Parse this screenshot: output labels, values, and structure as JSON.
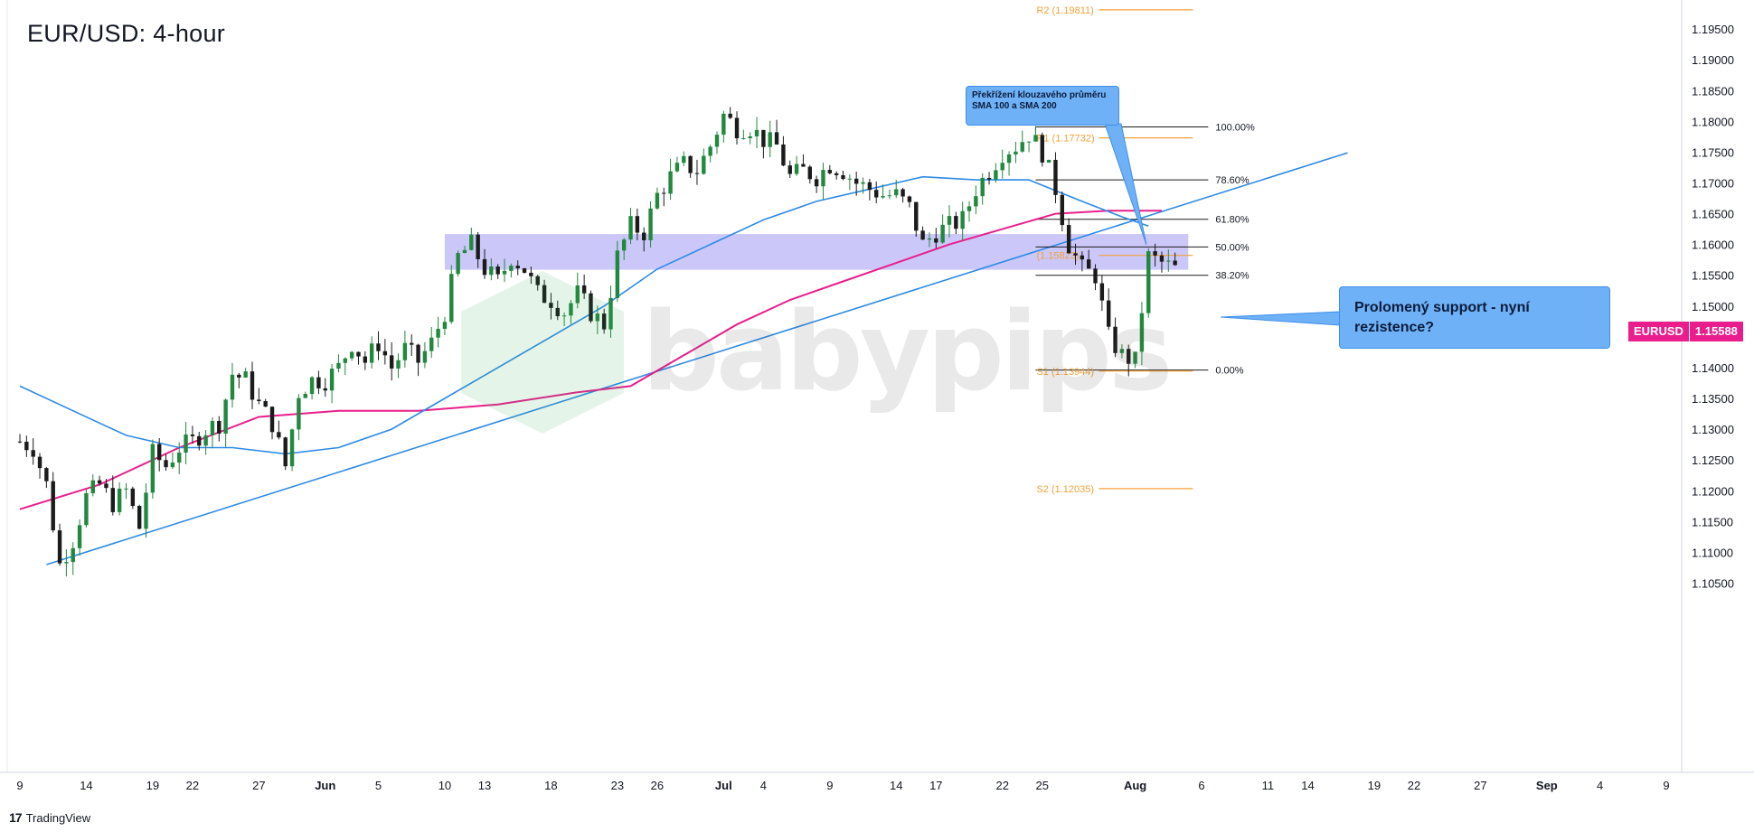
{
  "title": "EUR/USD: 4-hour",
  "brand": {
    "logo": "17",
    "name": "TradingView"
  },
  "watermark": "babypips",
  "price_tag": {
    "symbol": "EURUSD",
    "value": "1.15588"
  },
  "callouts": {
    "sma_cross": "Překřížení klouzavého průměru SMA 100 a SMA 200",
    "broken_support": "Prolomený support - nyní rezistence?"
  },
  "colors": {
    "bull": "#22883f",
    "bear": "#1b1b1b",
    "sma100": "#2d8ae6",
    "sma200": "#e91e8c",
    "trend": "#2d8ae6",
    "zone": "#b9b6f7",
    "pivot": "#f2a13a",
    "fib": "#1b1b1b",
    "callout": "#6fb1f7"
  },
  "chart_data": {
    "type": "candlestick",
    "y_axis": {
      "min": 1.1,
      "max": 1.198,
      "ticks": [
        1.195,
        1.19,
        1.185,
        1.18,
        1.175,
        1.17,
        1.165,
        1.16,
        1.155,
        1.15,
        1.145,
        1.14,
        1.135,
        1.13,
        1.125,
        1.12,
        1.115,
        1.11,
        1.105
      ],
      "tick_labels": [
        "1.19500",
        "1.19000",
        "1.18500",
        "1.18000",
        "1.17500",
        "1.17000",
        "1.16500",
        "1.16000",
        "1.15500",
        "1.15000",
        "1.14500",
        "1.14000",
        "1.13500",
        "1.13000",
        "1.12500",
        "1.12000",
        "1.11500",
        "1.11000",
        "1.10500"
      ]
    },
    "x_axis": {
      "labels": [
        {
          "t": "9",
          "d": 0
        },
        {
          "t": "14",
          "d": 5
        },
        {
          "t": "19",
          "d": 10
        },
        {
          "t": "22",
          "d": 13
        },
        {
          "t": "27",
          "d": 18
        },
        {
          "t": "Jun",
          "d": 23
        },
        {
          "t": "5",
          "d": 27
        },
        {
          "t": "10",
          "d": 32
        },
        {
          "t": "13",
          "d": 35
        },
        {
          "t": "18",
          "d": 40
        },
        {
          "t": "23",
          "d": 45
        },
        {
          "t": "26",
          "d": 48
        },
        {
          "t": "Jul",
          "d": 53
        },
        {
          "t": "4",
          "d": 56
        },
        {
          "t": "9",
          "d": 61
        },
        {
          "t": "14",
          "d": 66
        },
        {
          "t": "17",
          "d": 69
        },
        {
          "t": "22",
          "d": 74
        },
        {
          "t": "25",
          "d": 77
        },
        {
          "t": "Aug",
          "d": 84
        },
        {
          "t": "6",
          "d": 89
        },
        {
          "t": "11",
          "d": 94
        },
        {
          "t": "14",
          "d": 97
        },
        {
          "t": "19",
          "d": 102
        },
        {
          "t": "22",
          "d": 105
        },
        {
          "t": "27",
          "d": 110
        },
        {
          "t": "Sep",
          "d": 115
        },
        {
          "t": "4",
          "d": 119
        },
        {
          "t": "9",
          "d": 124
        }
      ],
      "day_range": [
        0,
        124
      ]
    },
    "price_path": [
      {
        "d": 0,
        "p": 1.128
      },
      {
        "d": 1,
        "p": 1.127
      },
      {
        "d": 2,
        "p": 1.121
      },
      {
        "d": 3,
        "p": 1.108
      },
      {
        "d": 4,
        "p": 1.112
      },
      {
        "d": 5,
        "p": 1.119
      },
      {
        "d": 6,
        "p": 1.121
      },
      {
        "d": 7,
        "p": 1.118
      },
      {
        "d": 8,
        "p": 1.12
      },
      {
        "d": 9,
        "p": 1.114
      },
      {
        "d": 10,
        "p": 1.126
      },
      {
        "d": 11,
        "p": 1.124
      },
      {
        "d": 12,
        "p": 1.127
      },
      {
        "d": 13,
        "p": 1.128
      },
      {
        "d": 14,
        "p": 1.13
      },
      {
        "d": 15,
        "p": 1.131
      },
      {
        "d": 16,
        "p": 1.139
      },
      {
        "d": 17,
        "p": 1.138
      },
      {
        "d": 18,
        "p": 1.134
      },
      {
        "d": 19,
        "p": 1.131
      },
      {
        "d": 20,
        "p": 1.124
      },
      {
        "d": 21,
        "p": 1.136
      },
      {
        "d": 22,
        "p": 1.138
      },
      {
        "d": 23,
        "p": 1.138
      },
      {
        "d": 24,
        "p": 1.14
      },
      {
        "d": 25,
        "p": 1.144
      },
      {
        "d": 26,
        "p": 1.141
      },
      {
        "d": 27,
        "p": 1.144
      },
      {
        "d": 28,
        "p": 1.14
      },
      {
        "d": 29,
        "p": 1.143
      },
      {
        "d": 30,
        "p": 1.141
      },
      {
        "d": 31,
        "p": 1.144
      },
      {
        "d": 32,
        "p": 1.149
      },
      {
        "d": 33,
        "p": 1.158
      },
      {
        "d": 34,
        "p": 1.16
      },
      {
        "d": 35,
        "p": 1.156
      },
      {
        "d": 36,
        "p": 1.154
      },
      {
        "d": 37,
        "p": 1.158
      },
      {
        "d": 38,
        "p": 1.156
      },
      {
        "d": 39,
        "p": 1.152
      },
      {
        "d": 40,
        "p": 1.151
      },
      {
        "d": 41,
        "p": 1.149
      },
      {
        "d": 42,
        "p": 1.152
      },
      {
        "d": 43,
        "p": 1.149
      },
      {
        "d": 44,
        "p": 1.147
      },
      {
        "d": 45,
        "p": 1.158
      },
      {
        "d": 46,
        "p": 1.163
      },
      {
        "d": 47,
        "p": 1.162
      },
      {
        "d": 48,
        "p": 1.168
      },
      {
        "d": 49,
        "p": 1.171
      },
      {
        "d": 50,
        "p": 1.173
      },
      {
        "d": 51,
        "p": 1.172
      },
      {
        "d": 52,
        "p": 1.176
      },
      {
        "d": 53,
        "p": 1.181
      },
      {
        "d": 54,
        "p": 1.179
      },
      {
        "d": 55,
        "p": 1.179
      },
      {
        "d": 56,
        "p": 1.177
      },
      {
        "d": 57,
        "p": 1.176
      },
      {
        "d": 58,
        "p": 1.171
      },
      {
        "d": 59,
        "p": 1.172
      },
      {
        "d": 60,
        "p": 1.171
      },
      {
        "d": 61,
        "p": 1.173
      },
      {
        "d": 62,
        "p": 1.172
      },
      {
        "d": 63,
        "p": 1.17
      },
      {
        "d": 64,
        "p": 1.169
      },
      {
        "d": 65,
        "p": 1.168
      },
      {
        "d": 66,
        "p": 1.168
      },
      {
        "d": 67,
        "p": 1.166
      },
      {
        "d": 68,
        "p": 1.16
      },
      {
        "d": 69,
        "p": 1.162
      },
      {
        "d": 70,
        "p": 1.163
      },
      {
        "d": 71,
        "p": 1.164
      },
      {
        "d": 72,
        "p": 1.169
      },
      {
        "d": 73,
        "p": 1.172
      },
      {
        "d": 74,
        "p": 1.175
      },
      {
        "d": 75,
        "p": 1.176
      },
      {
        "d": 76,
        "p": 1.178
      },
      {
        "d": 77,
        "p": 1.175
      },
      {
        "d": 78,
        "p": 1.169
      },
      {
        "d": 79,
        "p": 1.16
      },
      {
        "d": 80,
        "p": 1.156
      },
      {
        "d": 81,
        "p": 1.155
      },
      {
        "d": 82,
        "p": 1.145
      },
      {
        "d": 83,
        "p": 1.142
      },
      {
        "d": 84,
        "p": 1.141
      },
      {
        "d": 85,
        "p": 1.158
      },
      {
        "d": 86,
        "p": 1.157
      },
      {
        "d": 87,
        "p": 1.156
      }
    ],
    "sma100": [
      {
        "d": 0,
        "p": 1.137
      },
      {
        "d": 4,
        "p": 1.133
      },
      {
        "d": 8,
        "p": 1.129
      },
      {
        "d": 12,
        "p": 1.127
      },
      {
        "d": 16,
        "p": 1.127
      },
      {
        "d": 20,
        "p": 1.126
      },
      {
        "d": 24,
        "p": 1.127
      },
      {
        "d": 28,
        "p": 1.13
      },
      {
        "d": 32,
        "p": 1.135
      },
      {
        "d": 36,
        "p": 1.14
      },
      {
        "d": 40,
        "p": 1.145
      },
      {
        "d": 44,
        "p": 1.15
      },
      {
        "d": 48,
        "p": 1.156
      },
      {
        "d": 52,
        "p": 1.16
      },
      {
        "d": 56,
        "p": 1.164
      },
      {
        "d": 60,
        "p": 1.167
      },
      {
        "d": 64,
        "p": 1.169
      },
      {
        "d": 68,
        "p": 1.171
      },
      {
        "d": 72,
        "p": 1.1705
      },
      {
        "d": 76,
        "p": 1.1705
      },
      {
        "d": 80,
        "p": 1.167
      },
      {
        "d": 83,
        "p": 1.1645
      },
      {
        "d": 85,
        "p": 1.163
      }
    ],
    "sma200": [
      {
        "d": 0,
        "p": 1.117
      },
      {
        "d": 6,
        "p": 1.121
      },
      {
        "d": 12,
        "p": 1.127
      },
      {
        "d": 18,
        "p": 1.132
      },
      {
        "d": 24,
        "p": 1.133
      },
      {
        "d": 30,
        "p": 1.133
      },
      {
        "d": 36,
        "p": 1.134
      },
      {
        "d": 42,
        "p": 1.136
      },
      {
        "d": 46,
        "p": 1.137
      },
      {
        "d": 50,
        "p": 1.142
      },
      {
        "d": 54,
        "p": 1.147
      },
      {
        "d": 58,
        "p": 1.151
      },
      {
        "d": 62,
        "p": 1.154
      },
      {
        "d": 66,
        "p": 1.157
      },
      {
        "d": 70,
        "p": 1.16
      },
      {
        "d": 74,
        "p": 1.1625
      },
      {
        "d": 78,
        "p": 1.165
      },
      {
        "d": 82,
        "p": 1.1655
      },
      {
        "d": 86,
        "p": 1.1655
      }
    ],
    "trendline": {
      "from": {
        "d": 2,
        "p": 1.108
      },
      "to": {
        "d": 100,
        "p": 1.1749
      }
    },
    "zone": {
      "d_from": 32,
      "d_to": 88,
      "p_top": 1.1617,
      "p_bottom": 1.1559
    },
    "pivots": [
      {
        "label": "R2 (1.19811)",
        "p": 1.19811,
        "d_from": 76.5,
        "d_to": 88
      },
      {
        "label": "R1 (1.17732)",
        "p": 1.17732,
        "d_from": 76.5,
        "d_to": 88
      },
      {
        "label": "(1.15823)",
        "p": 1.15823,
        "d_from": 76.5,
        "d_to": 88
      },
      {
        "label": "S1 (1.13944)",
        "p": 1.13944,
        "d_from": 76.5,
        "d_to": 88
      },
      {
        "label": "S2 (1.12035)",
        "p": 1.12035,
        "d_from": 76.5,
        "d_to": 88
      }
    ],
    "fib_levels": [
      {
        "label": "100.00%",
        "p": 1.1791
      },
      {
        "label": "78.60%",
        "p": 1.1705
      },
      {
        "label": "61.80%",
        "p": 1.1641
      },
      {
        "label": "50.00%",
        "p": 1.1596
      },
      {
        "label": "38.20%",
        "p": 1.155
      },
      {
        "label": "0.00%",
        "p": 1.1396
      }
    ],
    "fib_range": {
      "d_from": 76.5,
      "d_to": 89.5
    },
    "last_price": 1.15588
  }
}
